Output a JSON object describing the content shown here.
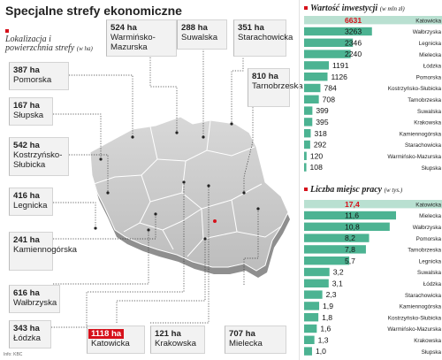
{
  "title": "Specjalne strefy ekonomiczne",
  "subtitle": "Lokalizacja i powierzchnia strefy",
  "subtitle_unit": "(w ha)",
  "source": "Info: KBC",
  "zones": [
    {
      "name": "Warmińsko-Mazurska",
      "area": "524 ha",
      "highlight": false
    },
    {
      "name": "Suwalska",
      "area": "288 ha",
      "highlight": false
    },
    {
      "name": "Starachowicka",
      "area": "351 ha",
      "highlight": false
    },
    {
      "name": "Pomorska",
      "area": "387 ha",
      "highlight": false
    },
    {
      "name": "Tarnobrzeska",
      "area": "810 ha",
      "highlight": false
    },
    {
      "name": "Słupska",
      "area": "167 ha",
      "highlight": false
    },
    {
      "name": "Kostrzyńsko-Słubicka",
      "area": "542 ha",
      "highlight": false
    },
    {
      "name": "Legnicka",
      "area": "416 ha",
      "highlight": false
    },
    {
      "name": "Kamiennogórska",
      "area": "241 ha",
      "highlight": false
    },
    {
      "name": "Wałbrzyska",
      "area": "616 ha",
      "highlight": false
    },
    {
      "name": "Łódzka",
      "area": "343 ha",
      "highlight": false
    },
    {
      "name": "Katowicka",
      "area": "1118 ha",
      "highlight": true
    },
    {
      "name": "Krakowska",
      "area": "121 ha",
      "highlight": false
    },
    {
      "name": "Mielecka",
      "area": "707 ha",
      "highlight": false
    }
  ],
  "chart_data": [
    {
      "type": "bar",
      "orientation": "horizontal",
      "title": "Wartość inwestycji",
      "unit": "(w mln zł)",
      "categories": [
        "Katowicka",
        "Wałbrzyska",
        "Legnicka",
        "Mielecka",
        "Łódzka",
        "Pomorska",
        "Kostrzyńsko-Słubicka",
        "Tarnobrzeska",
        "Suwalska",
        "Krakowska",
        "Kamiennogórska",
        "Starachowicka",
        "Warmińsko-Mazurska",
        "Słupska"
      ],
      "values": [
        6631,
        3263,
        2346,
        2240,
        1191,
        1126,
        784,
        708,
        399,
        395,
        318,
        292,
        120,
        108
      ],
      "labels": [
        "6631",
        "3263",
        "2346",
        "2240",
        "1191",
        "1126",
        "784",
        "708",
        "399",
        "395",
        "318",
        "292",
        "120",
        "108"
      ],
      "highlight_index": 0,
      "xlim": [
        0,
        6631
      ]
    },
    {
      "type": "bar",
      "orientation": "horizontal",
      "title": "Liczba miejsc pracy",
      "unit": "(w tys.)",
      "categories": [
        "Katowicka",
        "Mielecka",
        "Wałbrzyska",
        "Pomorska",
        "Tarnobrzeska",
        "Legnicka",
        "Suwalska",
        "Łódzka",
        "Starachowicka",
        "Kamiennogórska",
        "Kostrzyńsko-Słubicka",
        "Warmińsko-Mazurska",
        "Krakowska",
        "Słupska"
      ],
      "values": [
        17.4,
        11.6,
        10.8,
        8.2,
        7.8,
        5.7,
        3.2,
        3.1,
        2.3,
        1.9,
        1.8,
        1.6,
        1.3,
        1.0
      ],
      "labels": [
        "17,4",
        "11,6",
        "10,8",
        "8,2",
        "7,8",
        "5,7",
        "3,2",
        "3,1",
        "2,3",
        "1,9",
        "1,8",
        "1,6",
        "1,3",
        "1,0"
      ],
      "highlight_index": 0,
      "xlim": [
        0,
        17.4
      ]
    }
  ],
  "colors": {
    "bar": "#4cb392",
    "bar_light": "#b9e0d1",
    "highlight": "#d6111b",
    "map_fill": "#c9c9c9",
    "box_bg": "#f2f2f2"
  }
}
